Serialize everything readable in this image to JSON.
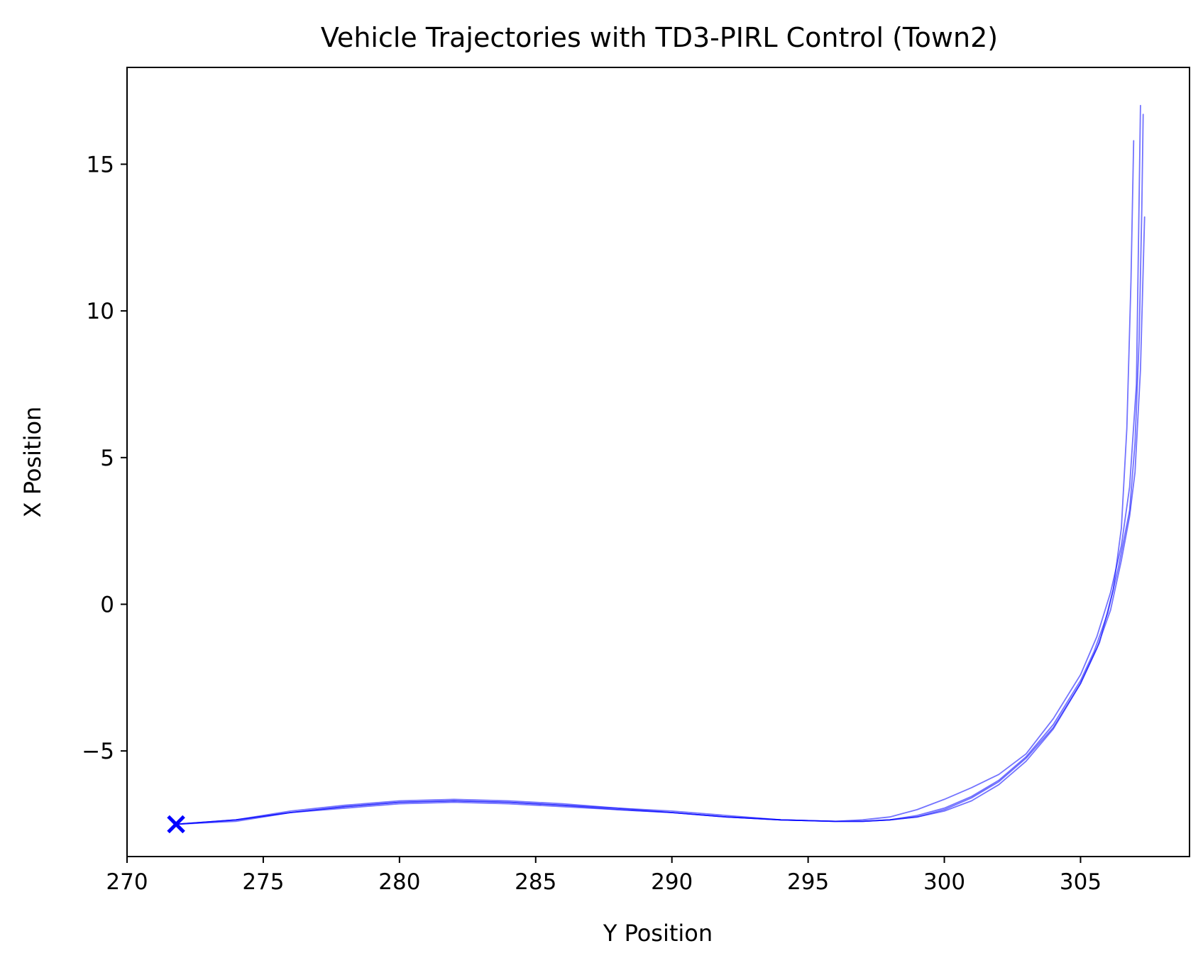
{
  "chart_data": {
    "type": "line",
    "title": "Vehicle Trajectories with TD3-PIRL Control (Town2)",
    "xlabel": "Y Position",
    "ylabel": "X Position",
    "xlim": [
      270,
      309
    ],
    "ylim": [
      -8.6,
      18.3
    ],
    "xticks": [
      270,
      275,
      280,
      285,
      290,
      295,
      300,
      305
    ],
    "yticks": [
      -5,
      0,
      5,
      10,
      15
    ],
    "grid": false,
    "legend": "none",
    "line_color": "#0000ff",
    "start_point": {
      "x": 271.8,
      "y": -7.5,
      "marker": "x"
    },
    "series": [
      {
        "x": [
          271.8,
          274,
          276,
          278,
          280,
          282,
          284,
          286,
          288,
          290,
          292,
          294,
          296,
          297,
          298,
          299,
          300,
          301,
          302,
          303,
          304,
          305,
          305.5,
          306,
          306.4,
          306.8,
          307.0,
          307.15,
          307.25,
          307.3
        ],
        "y": [
          -7.5,
          -7.35,
          -7.1,
          -6.9,
          -6.75,
          -6.7,
          -6.75,
          -6.85,
          -6.95,
          -7.1,
          -7.25,
          -7.35,
          -7.4,
          -7.4,
          -7.35,
          -7.2,
          -6.95,
          -6.55,
          -6.0,
          -5.2,
          -4.1,
          -2.6,
          -1.6,
          -0.3,
          1.3,
          3.2,
          5.5,
          9.0,
          13.5,
          16.7
        ]
      },
      {
        "x": [
          271.8,
          274,
          276,
          278,
          280,
          282,
          284,
          286,
          288,
          290,
          292,
          294,
          296,
          297,
          298,
          299,
          300,
          301,
          302,
          303,
          304,
          305,
          305.6,
          306.1,
          306.5,
          306.8,
          307.05,
          307.2
        ],
        "y": [
          -7.5,
          -7.35,
          -7.05,
          -6.85,
          -6.7,
          -6.65,
          -6.7,
          -6.8,
          -6.95,
          -7.05,
          -7.2,
          -7.35,
          -7.4,
          -7.35,
          -7.25,
          -7.0,
          -6.65,
          -6.25,
          -5.8,
          -5.1,
          -3.9,
          -2.4,
          -1.1,
          0.4,
          2.0,
          4.0,
          7.5,
          17.0
        ]
      },
      {
        "x": [
          271.8,
          274,
          276,
          278,
          280,
          282,
          284,
          286,
          288,
          290,
          292,
          294,
          296,
          297,
          298,
          299,
          300,
          301,
          302,
          303,
          304,
          305,
          305.7,
          306.2,
          306.5,
          306.7,
          306.85,
          306.95
        ],
        "y": [
          -7.5,
          -7.4,
          -7.1,
          -6.9,
          -6.75,
          -6.7,
          -6.75,
          -6.85,
          -7.0,
          -7.1,
          -7.25,
          -7.35,
          -7.4,
          -7.4,
          -7.35,
          -7.25,
          -7.0,
          -6.6,
          -6.05,
          -5.25,
          -4.2,
          -2.7,
          -1.3,
          0.5,
          2.6,
          6.0,
          11.0,
          15.8
        ]
      },
      {
        "x": [
          271.8,
          274,
          276,
          278,
          280,
          282,
          284,
          286,
          288,
          290,
          292,
          294,
          296,
          297,
          298,
          299,
          300,
          301,
          302,
          303,
          304,
          305,
          305.6,
          306.1,
          306.5,
          306.8,
          307.0,
          307.2,
          307.35
        ],
        "y": [
          -7.5,
          -7.35,
          -7.1,
          -6.95,
          -6.8,
          -6.75,
          -6.8,
          -6.9,
          -7.0,
          -7.1,
          -7.25,
          -7.35,
          -7.4,
          -7.4,
          -7.35,
          -7.25,
          -7.05,
          -6.7,
          -6.15,
          -5.35,
          -4.25,
          -2.7,
          -1.5,
          -0.2,
          1.5,
          3.0,
          4.5,
          8.0,
          13.2
        ]
      }
    ]
  }
}
